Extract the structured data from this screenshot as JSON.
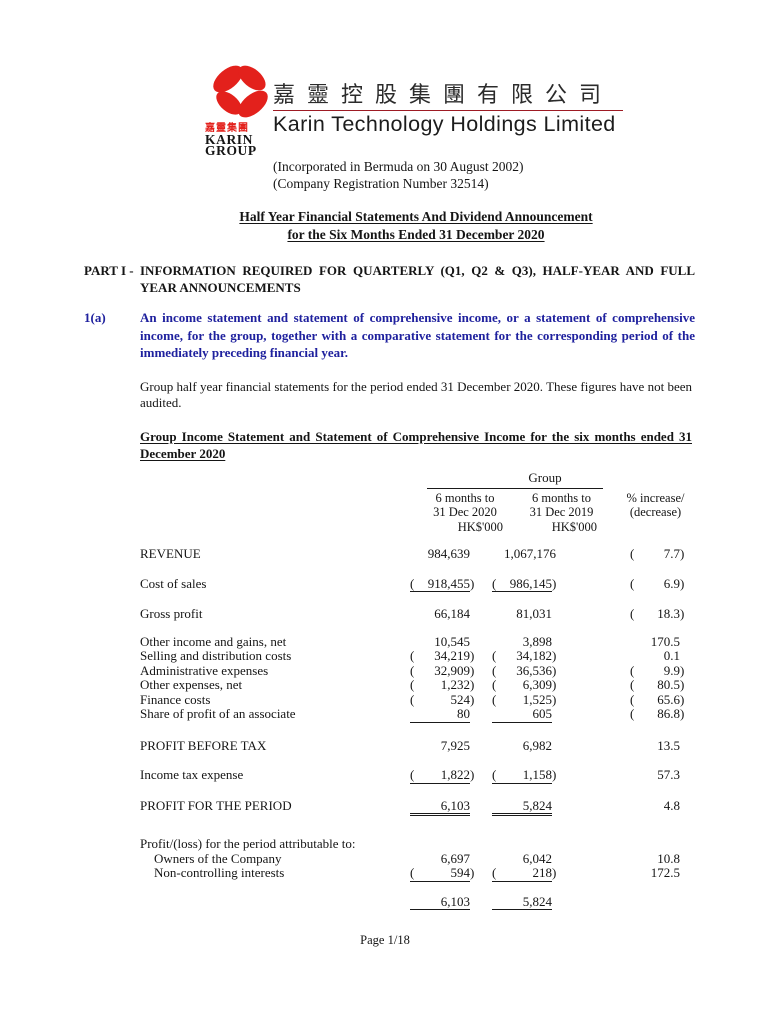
{
  "brand": {
    "logo_cn": "嘉靈集團",
    "logo_en_line1": "KARIN",
    "logo_en_line2": "GROUP",
    "company_name_cn": "嘉靈控股集團有限公司",
    "company_name_en": "Karin Technology Holdings Limited",
    "incorporated_line": "(Incorporated in Bermuda on 30 August 2002)",
    "registration_line": "(Company Registration Number 32514)",
    "brand_red": "#e3211c",
    "rule_red": "#9e1b24"
  },
  "title": {
    "line1": "Half Year Financial Statements And Dividend Announcement",
    "line2": "for the Six Months Ended 31 December 2020"
  },
  "part_i": {
    "label": "PART I -",
    "text": "INFORMATION REQUIRED FOR QUARTERLY (Q1, Q2 & Q3), HALF-YEAR AND FULL YEAR ANNOUNCEMENTS"
  },
  "item_1a": {
    "label": "1(a)",
    "text": "An income statement and statement of comprehensive income, or a statement of comprehensive income, for the group, together with a comparative statement for the corresponding period of the immediately preceding financial year.",
    "accent_blue": "#1f219e"
  },
  "intro_paragraph": "Group half year financial statements for the period ended 31 December 2020. These figures have not been audited.",
  "statement": {
    "heading": "Group Income Statement and Statement of Comprehensive Income for the six months ended 31 December 2020",
    "group_label": "Group",
    "columns": {
      "col_2020": [
        "6 months to",
        "31 Dec 2020",
        "HK$'000"
      ],
      "col_2019": [
        "6 months to",
        "31 Dec 2019",
        "HK$'000"
      ],
      "col_pct": [
        "% increase/",
        "(decrease)"
      ]
    },
    "rows": [
      {
        "label": "REVENUE",
        "c1": {
          "v": "984,639"
        },
        "c2": {
          "v": "1,067,176"
        },
        "c3": {
          "v": "7.7",
          "neg": true
        }
      },
      {
        "label": "Cost of sales",
        "gap": "lg",
        "rule": "single",
        "c1": {
          "v": "918,455",
          "neg": true
        },
        "c2": {
          "v": "986,145",
          "neg": true
        },
        "c3": {
          "v": "6.9",
          "neg": true
        }
      },
      {
        "label": "Gross profit",
        "gap": "lg",
        "c1": {
          "v": "66,184"
        },
        "c2": {
          "v": "81,031"
        },
        "c3": {
          "v": "18.3",
          "neg": true
        }
      },
      {
        "label": "Other income and gains, net",
        "gap": "md",
        "c1": {
          "v": "10,545"
        },
        "c2": {
          "v": "3,898"
        },
        "c3": {
          "v": "170.5"
        }
      },
      {
        "label": "Selling and distribution costs",
        "c1": {
          "v": "34,219",
          "neg": true
        },
        "c2": {
          "v": "34,182",
          "neg": true
        },
        "c3": {
          "v": "0.1"
        }
      },
      {
        "label": "Administrative expenses",
        "c1": {
          "v": "32,909",
          "neg": true
        },
        "c2": {
          "v": "36,536",
          "neg": true
        },
        "c3": {
          "v": "9.9",
          "neg": true
        }
      },
      {
        "label": "Other expenses, net",
        "c1": {
          "v": "1,232",
          "neg": true
        },
        "c2": {
          "v": "6,309",
          "neg": true
        },
        "c3": {
          "v": "80.5",
          "neg": true
        }
      },
      {
        "label": "Finance costs",
        "c1": {
          "v": "524",
          "neg": true
        },
        "c2": {
          "v": "1,525",
          "neg": true
        },
        "c3": {
          "v": "65.6",
          "neg": true
        }
      },
      {
        "label": "Share of profit of an associate",
        "rule": "single",
        "c1": {
          "v": "80"
        },
        "c2": {
          "v": "605"
        },
        "c3": {
          "v": "86.8",
          "neg": true
        }
      },
      {
        "label": "PROFIT BEFORE TAX",
        "gap": "pbt",
        "c1": {
          "v": "7,925"
        },
        "c2": {
          "v": "6,982"
        },
        "c3": {
          "v": "13.5"
        }
      },
      {
        "label": "Income tax expense",
        "gap": "lg",
        "rule": "single",
        "c1": {
          "v": "1,822",
          "neg": true
        },
        "c2": {
          "v": "1,158",
          "neg": true
        },
        "c3": {
          "v": "57.3"
        }
      },
      {
        "label": "PROFIT FOR THE PERIOD",
        "gap": "lg",
        "rule": "double",
        "c1": {
          "v": "6,103"
        },
        "c2": {
          "v": "5,824"
        },
        "c3": {
          "v": "4.8"
        }
      },
      {
        "label": "Profit/(loss) for the period attributable to:",
        "gap": "xl"
      },
      {
        "label": "Owners of the Company",
        "indent": true,
        "c1": {
          "v": "6,697"
        },
        "c2": {
          "v": "6,042"
        },
        "c3": {
          "v": "10.8"
        }
      },
      {
        "label": "Non-controlling interests",
        "indent": true,
        "rule": "single",
        "c1": {
          "v": "594",
          "neg": true
        },
        "c2": {
          "v": "218",
          "neg": true
        },
        "c3": {
          "v": "172.5"
        }
      },
      {
        "label": "",
        "gap": "md",
        "rule": "single",
        "c1": {
          "v": "6,103"
        },
        "c2": {
          "v": "5,824"
        }
      }
    ]
  },
  "footer": {
    "page_label": "Page 1/18"
  }
}
